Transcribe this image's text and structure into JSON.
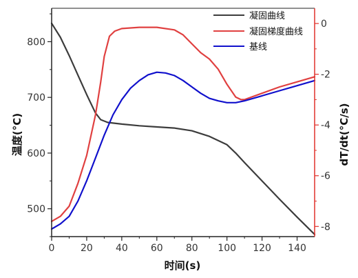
{
  "chart_data": {
    "type": "line",
    "xlabel": "时间(s)",
    "ylabel_left": "温度(°C)",
    "ylabel_right": "dT/dt(°C/s)",
    "xlim": [
      0,
      150
    ],
    "ylim_left": [
      450,
      860
    ],
    "ylim_right": [
      -8.4,
      0.6
    ],
    "x_ticks": [
      0,
      20,
      40,
      60,
      80,
      100,
      120,
      140
    ],
    "y_left_ticks": [
      500,
      600,
      700,
      800
    ],
    "y_right_ticks": [
      -8,
      -6,
      -4,
      -2,
      0
    ],
    "right_axis_color": "#e0302a",
    "grid": false,
    "legend_position": "top-right",
    "series": [
      {
        "name": "凝固曲线",
        "axis": "left",
        "color": "#3c3c3c",
        "x": [
          0,
          5,
          10,
          15,
          20,
          25,
          28,
          32,
          40,
          50,
          60,
          70,
          80,
          90,
          100,
          105,
          110,
          120,
          130,
          140,
          150
        ],
        "y": [
          833,
          808,
          775,
          740,
          705,
          672,
          660,
          655,
          652,
          649,
          647,
          645,
          640,
          630,
          615,
          600,
          583,
          550,
          517,
          485,
          454
        ]
      },
      {
        "name": "凝固梯度曲线",
        "axis": "right",
        "color": "#e04040",
        "x": [
          0,
          5,
          10,
          15,
          20,
          25,
          28,
          30,
          33,
          36,
          40,
          50,
          60,
          70,
          75,
          80,
          85,
          90,
          95,
          100,
          105,
          108,
          110,
          120,
          130,
          140,
          150
        ],
        "y": [
          -7.8,
          -7.6,
          -7.2,
          -6.3,
          -5.2,
          -3.6,
          -2.3,
          -1.3,
          -0.5,
          -0.3,
          -0.2,
          -0.15,
          -0.15,
          -0.25,
          -0.45,
          -0.8,
          -1.15,
          -1.4,
          -1.8,
          -2.4,
          -2.9,
          -3.0,
          -3.0,
          -2.75,
          -2.5,
          -2.3,
          -2.1
        ]
      },
      {
        "name": "基线",
        "axis": "right",
        "color": "#1010cc",
        "x": [
          0,
          5,
          10,
          15,
          20,
          25,
          30,
          35,
          40,
          45,
          50,
          55,
          60,
          65,
          70,
          75,
          80,
          85,
          90,
          95,
          100,
          105,
          110,
          115,
          120,
          130,
          140,
          150
        ],
        "y": [
          -8.1,
          -7.9,
          -7.6,
          -7.0,
          -6.2,
          -5.3,
          -4.4,
          -3.6,
          -3.0,
          -2.55,
          -2.25,
          -2.02,
          -1.92,
          -1.95,
          -2.05,
          -2.25,
          -2.5,
          -2.75,
          -2.95,
          -3.05,
          -3.12,
          -3.12,
          -3.05,
          -2.95,
          -2.85,
          -2.65,
          -2.45,
          -2.25
        ]
      }
    ]
  }
}
